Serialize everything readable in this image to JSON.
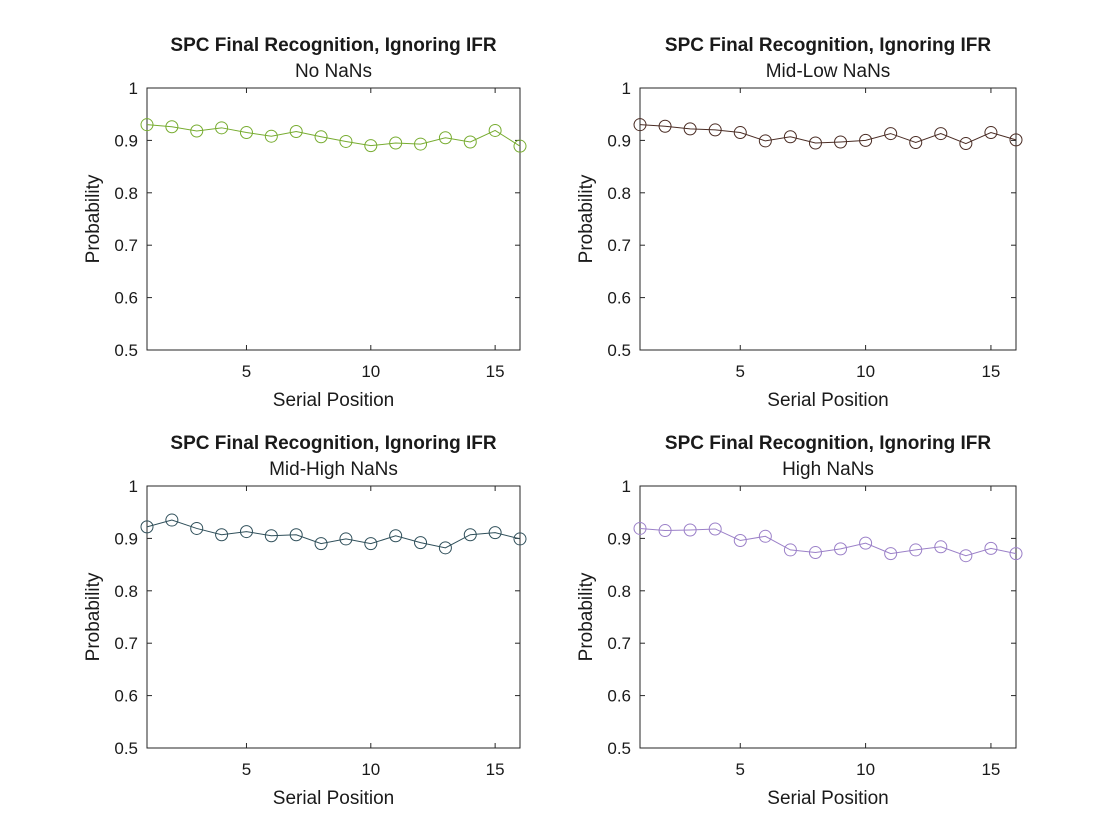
{
  "chart_data": [
    {
      "type": "line",
      "title": "SPC Final Recognition, Ignoring IFR",
      "subtitle": "No NaNs",
      "xlabel": "Serial Position",
      "ylabel": "Probability",
      "xlim": [
        1,
        16
      ],
      "ylim": [
        0.5,
        1
      ],
      "xticks": [
        "5",
        "10",
        "15"
      ],
      "yticks": [
        "0.5",
        "0.6",
        "0.7",
        "0.8",
        "0.9",
        "1"
      ],
      "grid": false,
      "color": "#77ac30",
      "marker": "circle",
      "series": [
        {
          "x": [
            1,
            2,
            3,
            4,
            5,
            6,
            7,
            8,
            9,
            10,
            11,
            12,
            13,
            14,
            15,
            16
          ],
          "values": [
            0.93,
            0.926,
            0.918,
            0.924,
            0.915,
            0.908,
            0.917,
            0.907,
            0.898,
            0.89,
            0.895,
            0.893,
            0.905,
            0.897,
            0.919,
            0.889
          ]
        }
      ]
    },
    {
      "type": "line",
      "title": "SPC Final Recognition, Ignoring IFR",
      "subtitle": "Mid-Low NaNs",
      "xlabel": "Serial Position",
      "ylabel": "Probability",
      "xlim": [
        1,
        16
      ],
      "ylim": [
        0.5,
        1
      ],
      "xticks": [
        "5",
        "10",
        "15"
      ],
      "yticks": [
        "0.5",
        "0.6",
        "0.7",
        "0.8",
        "0.9",
        "1"
      ],
      "grid": false,
      "color": "#4a2c24",
      "marker": "circle",
      "series": [
        {
          "x": [
            1,
            2,
            3,
            4,
            5,
            6,
            7,
            8,
            9,
            10,
            11,
            12,
            13,
            14,
            15,
            16
          ],
          "values": [
            0.93,
            0.927,
            0.922,
            0.92,
            0.915,
            0.899,
            0.907,
            0.895,
            0.897,
            0.9,
            0.913,
            0.896,
            0.913,
            0.894,
            0.915,
            0.901
          ]
        }
      ]
    },
    {
      "type": "line",
      "title": "SPC Final Recognition, Ignoring IFR",
      "subtitle": "Mid-High NaNs",
      "xlabel": "Serial Position",
      "ylabel": "Probability",
      "xlim": [
        1,
        16
      ],
      "ylim": [
        0.5,
        1
      ],
      "xticks": [
        "5",
        "10",
        "15"
      ],
      "yticks": [
        "0.5",
        "0.6",
        "0.7",
        "0.8",
        "0.9",
        "1"
      ],
      "grid": false,
      "color": "#2f4f5a",
      "marker": "circle",
      "series": [
        {
          "x": [
            1,
            2,
            3,
            4,
            5,
            6,
            7,
            8,
            9,
            10,
            11,
            12,
            13,
            14,
            15,
            16
          ],
          "values": [
            0.922,
            0.935,
            0.919,
            0.907,
            0.913,
            0.905,
            0.907,
            0.89,
            0.899,
            0.89,
            0.905,
            0.892,
            0.882,
            0.907,
            0.911,
            0.899
          ]
        }
      ]
    },
    {
      "type": "line",
      "title": "SPC Final Recognition, Ignoring IFR",
      "subtitle": "High NaNs",
      "xlabel": "Serial Position",
      "ylabel": "Probability",
      "xlim": [
        1,
        16
      ],
      "ylim": [
        0.5,
        1
      ],
      "xticks": [
        "5",
        "10",
        "15"
      ],
      "yticks": [
        "0.5",
        "0.6",
        "0.7",
        "0.8",
        "0.9",
        "1"
      ],
      "grid": false,
      "color": "#9b80c8",
      "marker": "circle",
      "series": [
        {
          "x": [
            1,
            2,
            3,
            4,
            5,
            6,
            7,
            8,
            9,
            10,
            11,
            12,
            13,
            14,
            15,
            16
          ],
          "values": [
            0.919,
            0.915,
            0.916,
            0.918,
            0.896,
            0.904,
            0.878,
            0.873,
            0.88,
            0.891,
            0.871,
            0.878,
            0.884,
            0.867,
            0.881,
            0.871
          ]
        }
      ]
    }
  ]
}
